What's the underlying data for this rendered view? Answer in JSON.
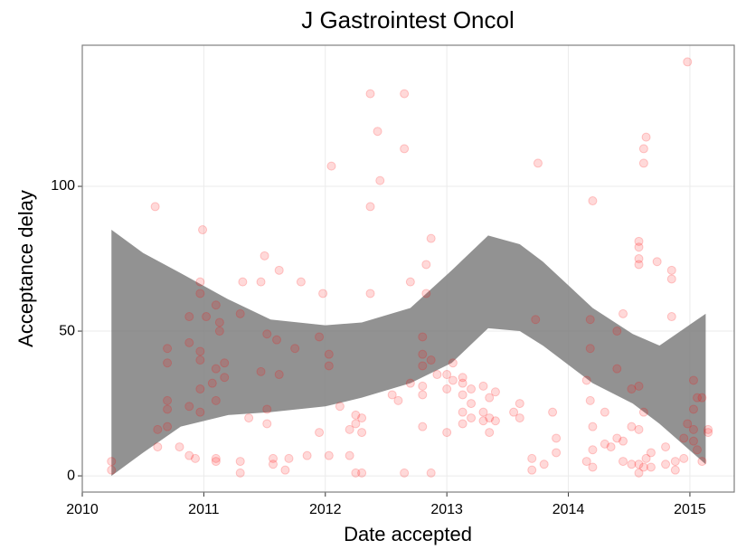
{
  "chart_data": {
    "type": "scatter",
    "title": "J Gastrointest Oncol",
    "x_label": "Date accepted",
    "y_label": "Acceptance delay",
    "xlim": [
      2010,
      2015.365
    ],
    "ylim": [
      -5.6,
      148.75
    ],
    "xticks": [
      2010,
      2011,
      2012,
      2013,
      2014,
      2015
    ],
    "yticks": [
      0,
      50,
      100
    ],
    "grid": true,
    "color": "#ff0000",
    "x": [
      2010.24,
      2010.24,
      2010.6,
      2010.62,
      2010.62,
      2010.7,
      2010.7,
      2010.7,
      2010.7,
      2010.7,
      2010.8,
      2010.88,
      2010.88,
      2010.88,
      2010.88,
      2010.93,
      2010.97,
      2010.97,
      2010.97,
      2010.97,
      2010.97,
      2010.97,
      2010.99,
      2011.02,
      2011.07,
      2011.1,
      2011.1,
      2011.1,
      2011.1,
      2011.1,
      2011.13,
      2011.13,
      2011.17,
      2011.17,
      2011.3,
      2011.3,
      2011.3,
      2011.32,
      2011.37,
      2011.47,
      2011.47,
      2011.5,
      2011.52,
      2011.52,
      2011.52,
      2011.57,
      2011.57,
      2011.6,
      2011.62,
      2011.62,
      2011.67,
      2011.7,
      2011.75,
      2011.8,
      2011.85,
      2011.95,
      2011.95,
      2011.98,
      2012.03,
      2012.03,
      2012.03,
      2012.05,
      2012.12,
      2012.2,
      2012.2,
      2012.25,
      2012.25,
      2012.25,
      2012.3,
      2012.3,
      2012.3,
      2012.37,
      2012.37,
      2012.37,
      2012.43,
      2012.45,
      2012.55,
      2012.6,
      2012.65,
      2012.65,
      2012.65,
      2012.7,
      2012.7,
      2012.8,
      2012.8,
      2012.8,
      2012.8,
      2012.8,
      2012.8,
      2012.83,
      2012.83,
      2012.87,
      2012.87,
      2012.87,
      2012.92,
      2013.0,
      2013.0,
      2013.0,
      2013.05,
      2013.05,
      2013.13,
      2013.13,
      2013.13,
      2013.13,
      2013.13,
      2013.2,
      2013.2,
      2013.2,
      2013.3,
      2013.3,
      2013.3,
      2013.35,
      2013.35,
      2013.35,
      2013.4,
      2013.4,
      2013.55,
      2013.6,
      2013.6,
      2013.7,
      2013.7,
      2013.73,
      2013.75,
      2013.8,
      2013.87,
      2013.9,
      2013.9,
      2014.15,
      2014.15,
      2014.18,
      2014.18,
      2014.18,
      2014.2,
      2014.2,
      2014.2,
      2014.2,
      2014.3,
      2014.3,
      2014.35,
      2014.4,
      2014.4,
      2014.4,
      2014.45,
      2014.45,
      2014.45,
      2014.52,
      2014.52,
      2014.52,
      2014.58,
      2014.58,
      2014.58,
      2014.58,
      2014.58,
      2014.58,
      2014.58,
      2014.58,
      2014.62,
      2014.62,
      2014.62,
      2014.62,
      2014.64,
      2014.64,
      2014.68,
      2014.68,
      2014.73,
      2014.8,
      2014.8,
      2014.85,
      2014.85,
      2014.85,
      2014.88,
      2014.88,
      2014.95,
      2014.95,
      2014.98,
      2014.98,
      2015.03,
      2015.03,
      2015.03,
      2015.03,
      2015.06,
      2015.06,
      2015.1,
      2015.1,
      2015.15,
      2015.15
    ],
    "values": [
      5,
      2,
      93,
      16,
      10,
      44,
      39,
      26,
      23,
      17,
      10,
      46,
      55,
      24,
      7,
      6,
      67,
      63,
      43,
      40,
      30,
      22,
      85,
      55,
      32,
      59,
      37,
      26,
      6,
      5,
      53,
      50,
      39,
      34,
      56,
      5,
      1,
      67,
      20,
      67,
      36,
      76,
      49,
      23,
      18,
      6,
      4,
      47,
      71,
      35,
      2,
      6,
      44,
      67,
      7,
      48,
      15,
      63,
      42,
      38,
      7,
      107,
      24,
      16,
      7,
      21,
      18,
      1,
      20,
      15,
      1,
      132,
      93,
      63,
      119,
      102,
      28,
      26,
      132,
      113,
      1,
      67,
      32,
      48,
      42,
      38,
      31,
      28,
      17,
      73,
      63,
      82,
      40,
      1,
      35,
      35,
      30,
      15,
      39,
      33,
      34,
      32,
      28,
      22,
      18,
      30,
      25,
      20,
      31,
      22,
      19,
      27,
      20,
      15,
      29,
      19,
      22,
      25,
      20,
      6,
      2,
      54,
      108,
      4,
      22,
      13,
      8,
      33,
      5,
      54,
      44,
      26,
      95,
      17,
      9,
      3,
      22,
      11,
      10,
      50,
      37,
      13,
      56,
      12,
      5,
      30,
      17,
      4,
      81,
      79,
      75,
      73,
      31,
      16,
      4,
      1,
      113,
      108,
      22,
      3,
      117,
      6,
      8,
      3,
      74,
      10,
      4,
      71,
      68,
      55,
      5,
      2,
      13,
      6,
      143,
      18,
      33,
      23,
      16,
      12,
      27,
      9,
      27,
      5,
      16,
      15
    ],
    "band": {
      "color": "#7f7f7f",
      "x": [
        2010.24,
        2010.5,
        2010.81,
        2011.2,
        2011.55,
        2012.0,
        2012.3,
        2012.7,
        2013.04,
        2013.34,
        2013.6,
        2013.79,
        2014.2,
        2014.53,
        2014.75,
        2015.13
      ],
      "upper": [
        85,
        77,
        70,
        61,
        54,
        52,
        53,
        58,
        71,
        83,
        80,
        74,
        58,
        49,
        45,
        56
      ],
      "lower": [
        0,
        8,
        17,
        21,
        22,
        24,
        27,
        32,
        39,
        51,
        50,
        45,
        32,
        25,
        18,
        4
      ]
    }
  }
}
